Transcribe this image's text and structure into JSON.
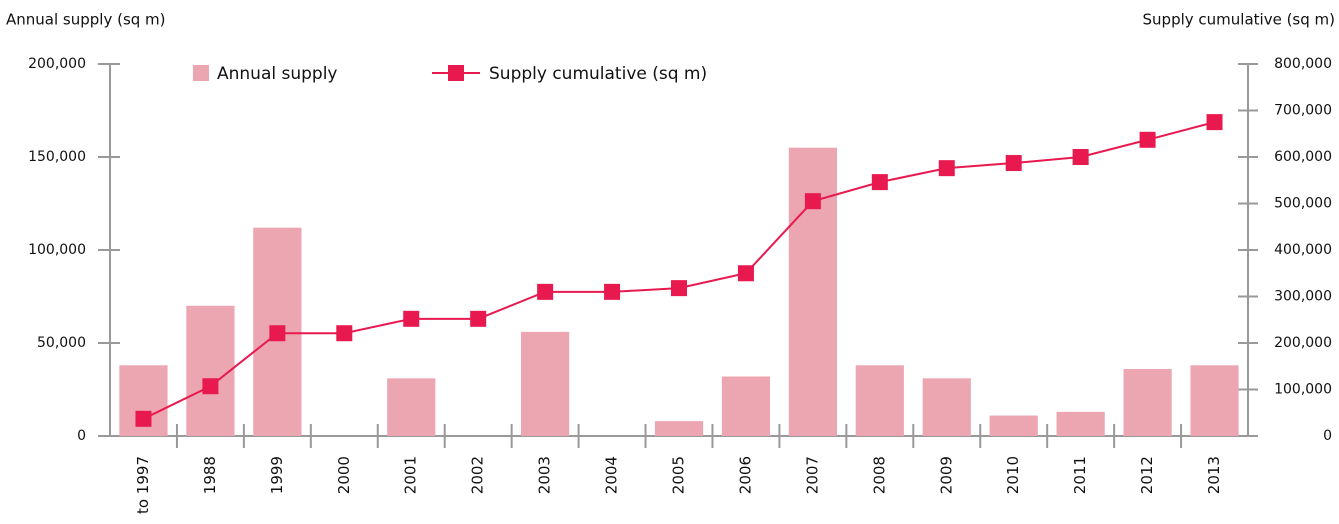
{
  "chart_data": {
    "type": "bar_line",
    "y_label": "Annual supply (sq m)",
    "y2_label": "Supply cumulative (sq m)",
    "categories": [
      "to 1997",
      "1988",
      "1999",
      "2000",
      "2001",
      "2002",
      "2003",
      "2004",
      "2005",
      "2006",
      "2007",
      "2008",
      "2009",
      "2010",
      "2011",
      "2012",
      "2013"
    ],
    "series": [
      {
        "name": "Annual supply",
        "type": "bar",
        "color": "#eca6b1",
        "values": [
          38000,
          70000,
          112000,
          0,
          31000,
          0,
          56000,
          0,
          8000,
          32000,
          155000,
          38000,
          31000,
          11000,
          13000,
          36000,
          38000
        ]
      },
      {
        "name": "Supply cumulative (sq m)",
        "type": "line",
        "axis": "y2",
        "color": "#e8194f",
        "values": [
          37000,
          107000,
          221000,
          221000,
          252000,
          252000,
          310000,
          310000,
          318000,
          350000,
          505000,
          546000,
          576000,
          587000,
          600000,
          637000,
          675000
        ]
      }
    ],
    "ylim": [
      0,
      200000
    ],
    "yticks": [
      0,
      {
        "value": 50000,
        "label": "50,000"
      },
      {
        "value": 100000,
        "label": "100,000"
      },
      {
        "value": 150000,
        "label": "150,000"
      },
      {
        "value": 200000,
        "label": "200,000"
      }
    ],
    "y2lim": [
      0,
      800000
    ],
    "y2ticks": [
      0,
      {
        "value": 100000,
        "label": "100,000"
      },
      {
        "value": 200000,
        "label": "200,000"
      },
      {
        "value": 300000,
        "label": "300,000"
      },
      {
        "value": 400000,
        "label": "400,000"
      },
      {
        "value": 500000,
        "label": "500,000"
      },
      {
        "value": 600000,
        "label": "600,000"
      },
      {
        "value": 700000,
        "label": "700,000"
      },
      {
        "value": 800000,
        "label": "800,000"
      }
    ],
    "grid": false
  }
}
